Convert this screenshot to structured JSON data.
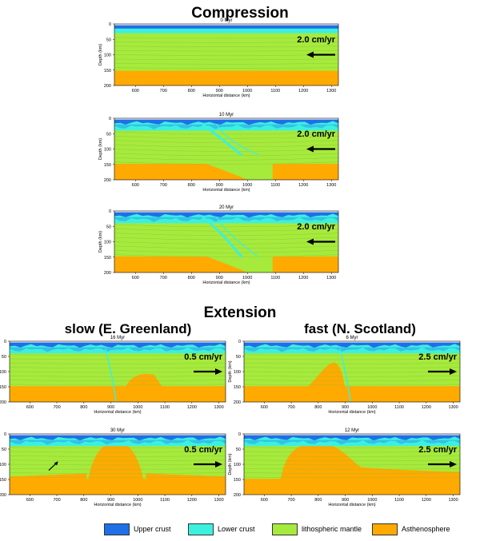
{
  "headings": {
    "compression": "Compression",
    "extension": "Extension",
    "slow": "slow (E. Greenland)",
    "fast": "fast (N. Scotland)"
  },
  "axes": {
    "ylabel": "Depth (km)",
    "xlabel": "Horizontal distance (km)",
    "yticks": [
      "0",
      "50",
      "100",
      "150",
      "200"
    ],
    "xticks": [
      "600",
      "700",
      "800",
      "900",
      "1000",
      "1100",
      "1200",
      "1300"
    ]
  },
  "colors": {
    "upper_crust": "#1f6fe8",
    "lower_crust": "#3cf0e0",
    "lithospheric_mantle": "#a6ea3c",
    "asthenosphere": "#ffaa00"
  },
  "panels": [
    {
      "id": "comp-0",
      "time": "0 Myr",
      "rate": "2.0 cm/yr",
      "arrow": "left",
      "kind": "comp0"
    },
    {
      "id": "comp-10",
      "time": "10 Myr",
      "rate": "2.0 cm/yr",
      "arrow": "left",
      "kind": "comp10"
    },
    {
      "id": "comp-20",
      "time": "20 Myr",
      "rate": "2.0 cm/yr",
      "arrow": "left",
      "kind": "comp20"
    },
    {
      "id": "slow-16",
      "time": "16 Myr",
      "rate": "0.5 cm/yr",
      "arrow": "right",
      "kind": "slow16"
    },
    {
      "id": "fast-6",
      "time": "6 Myr",
      "rate": "2.5 cm/yr",
      "arrow": "right",
      "kind": "fast6"
    },
    {
      "id": "slow-30",
      "time": "30 Myr",
      "rate": "0.5 cm/yr",
      "arrow": "right",
      "kind": "slow30"
    },
    {
      "id": "fast-12",
      "time": "12 Myr",
      "rate": "2.5 cm/yr",
      "arrow": "right",
      "kind": "fast12"
    }
  ],
  "legend": [
    {
      "label": "Upper crust",
      "color": "#1f6fe8"
    },
    {
      "label": "Lower crust",
      "color": "#3cf0e0"
    },
    {
      "label": "lithospheric mantle",
      "color": "#a6ea3c"
    },
    {
      "label": "Asthenosphere",
      "color": "#ffaa00"
    }
  ]
}
